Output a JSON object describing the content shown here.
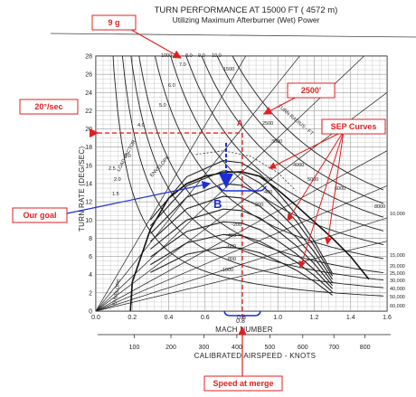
{
  "chart_data": {
    "type": "line",
    "title": "TURN PERFORMANCE AT 15000 FT ( 4572 m)",
    "subtitle": "Utilizing Maximum Afterburner (Wet) Power",
    "xlabel": "MACH NUMBER",
    "x2label": "CALIBRATED AIRSPEED - KNOTS",
    "ylabel": "TURN RATE (DEG/SEC)",
    "xlim": [
      0.0,
      1.6
    ],
    "ylim": [
      0,
      28
    ],
    "xticks": [
      "0.0",
      "0.2",
      "0.4",
      "0.6",
      "0.8",
      "1.0",
      "1.2",
      "1.4",
      "1.6"
    ],
    "yticks": [
      "0",
      "2",
      "4",
      "6",
      "8",
      "10",
      "12",
      "14",
      "16",
      "18",
      "20",
      "22",
      "24",
      "26",
      "28"
    ],
    "x2ticks": [
      {
        "label": "100",
        "mach": 0.2
      },
      {
        "label": "200",
        "mach": 0.4
      },
      {
        "label": "300",
        "mach": 0.58
      },
      {
        "label": "400",
        "mach": 0.76
      },
      {
        "label": "500",
        "mach": 0.94
      },
      {
        "label": "600",
        "mach": 1.12
      },
      {
        "label": "700",
        "mach": 1.29
      },
      {
        "label": "800",
        "mach": 1.46
      }
    ],
    "grid": true,
    "load_factor_labels": [
      "1000",
      "8.0",
      "9.0",
      "10.0",
      "7.0",
      "6.0",
      "5.0",
      "4.0",
      "3.0",
      "2.5",
      "2.0",
      "1.5"
    ],
    "turn_radius_labels": [
      "1500",
      "2500",
      "3000",
      "4000",
      "5000",
      "6000",
      "8000"
    ],
    "sep_labels": [
      "600",
      "400",
      "200",
      "0",
      "-200",
      "-400",
      "-600",
      "-800",
      "-1000"
    ],
    "altitude_labels": [
      "10,000",
      "15,000",
      "20,000",
      "25,000",
      "30,000",
      "40,000",
      "50,000",
      "60,000"
    ],
    "curve_text": [
      "LOAD FACTOR",
      "TURN RADIUS - FT",
      "ENVELOPE",
      "ENVELOPE"
    ],
    "annotations": {
      "g9": "9 g",
      "radius": "2500'",
      "rate": "20°/sec",
      "sep": "SEP Curves",
      "goal": "Our goal",
      "speed": "Speed at merge",
      "point_a": "A",
      "point_b": "B",
      "mach_mark": "0.8"
    },
    "point_a": {
      "mach": 0.8,
      "rate": 20
    },
    "point_b": {
      "mach": 0.8,
      "rate": 13.3
    },
    "envelope": [
      [
        0.2,
        3.2
      ],
      [
        0.3,
        9
      ],
      [
        0.4,
        12.4
      ],
      [
        0.5,
        14
      ],
      [
        0.6,
        14.8
      ],
      [
        0.7,
        15.2
      ],
      [
        0.8,
        15.3
      ],
      [
        0.9,
        14.8
      ],
      [
        1.0,
        13.3
      ],
      [
        1.1,
        11.6
      ],
      [
        1.2,
        9.8
      ],
      [
        1.3,
        8
      ],
      [
        1.4,
        6
      ],
      [
        1.5,
        3.5
      ]
    ],
    "sep_zero": [
      [
        0.3,
        8.5
      ],
      [
        0.5,
        12.5
      ],
      [
        0.7,
        14
      ],
      [
        0.8,
        13.8
      ],
      [
        0.9,
        12.8
      ],
      [
        1.0,
        11
      ],
      [
        1.1,
        9
      ],
      [
        1.2,
        6.5
      ],
      [
        1.3,
        3.5
      ]
    ],
    "colors": {
      "annotation": "#e02020",
      "goal": "#1a2fd6",
      "curves": "#222222",
      "grid": "#9a9a9a"
    }
  }
}
